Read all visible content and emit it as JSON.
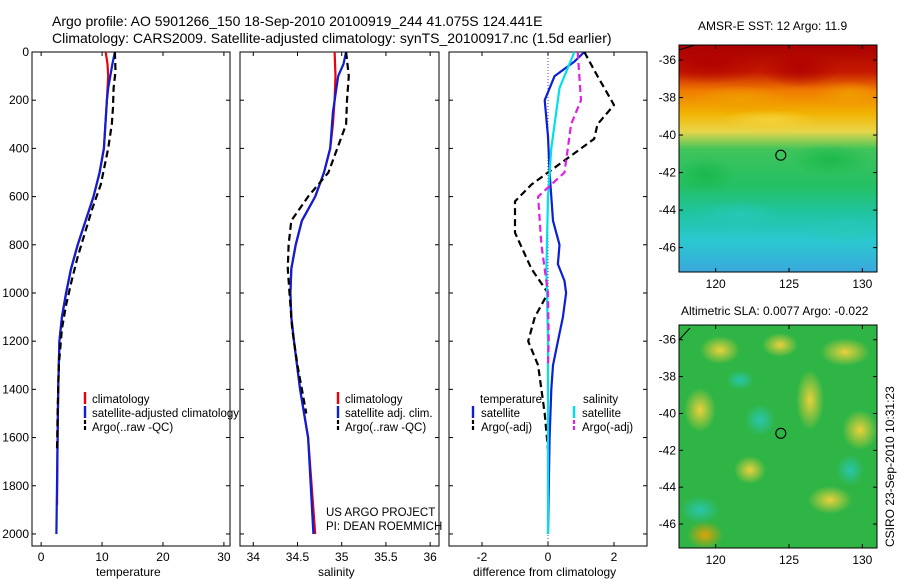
{
  "header": {
    "line1": "Argo profile: AO 5901266_150 18-Sep-2010 20100919_244 41.075S 124.441E",
    "line2": "Climatology: CARS2009. Satellite-adjusted climatology: synTS_20100917.nc (1.5d earlier)"
  },
  "side_stamp": "CSIRO 23-Sep-2010 10:31:23",
  "project_text": [
    "US ARGO PROJECT",
    "PI: DEAN ROEMMICH"
  ],
  "colors": {
    "climatology": "#e8000b",
    "satellite": "#0a1fd6",
    "argo": "#000000",
    "salinity_sat": "#00e0e8",
    "salinity_argo": "#e020e0",
    "zero_line": "#0a1fd6"
  },
  "chart_data": [
    {
      "type": "line",
      "xlabel": "temperature",
      "ylim": [
        2050,
        0
      ],
      "xlim": [
        -1.5,
        31
      ],
      "xticks": [
        0,
        10,
        20,
        30
      ],
      "xtick_labels": [
        "0",
        "10",
        "20",
        "30"
      ],
      "yticks": [
        0,
        200,
        400,
        600,
        800,
        1000,
        1200,
        1400,
        1600,
        1800,
        2000
      ],
      "ytick_labels": [
        "0",
        "200",
        "400",
        "600",
        "800",
        "1000",
        "1200",
        "1400",
        "1600",
        "1800",
        "2000"
      ],
      "legend": {
        "placement": "lower-right",
        "entries": [
          "climatology",
          "satellite-adjusted climatology",
          "Argo(..raw -QC)"
        ]
      },
      "series": [
        {
          "name": "climatology",
          "color": "#e8000b",
          "dash": "",
          "x": [
            10.6,
            10.9,
            11.0,
            10.8,
            10.3,
            9.6,
            8.6,
            7.3,
            6.0,
            4.9,
            4.1,
            3.4,
            3.0,
            2.8,
            2.7,
            2.6
          ],
          "y": [
            0,
            50,
            100,
            200,
            400,
            500,
            600,
            700,
            800,
            900,
            1000,
            1100,
            1200,
            1400,
            1600,
            1880
          ]
        },
        {
          "name": "satellite-adjusted climatology",
          "color": "#0a1fd6",
          "dash": "",
          "x": [
            12.1,
            11.7,
            11.0,
            10.8,
            10.3,
            9.6,
            8.6,
            7.3,
            6.0,
            4.9,
            4.1,
            3.4,
            3.0,
            2.8,
            2.7,
            2.6,
            2.5
          ],
          "y": [
            0,
            50,
            150,
            200,
            400,
            500,
            600,
            700,
            800,
            900,
            1000,
            1100,
            1200,
            1400,
            1600,
            1800,
            2000
          ]
        },
        {
          "name": "Argo(..raw -QC)",
          "color": "#000000",
          "dash": "7 4",
          "x": [
            12.1,
            12.2,
            11.9,
            11.8,
            11.6,
            11.0,
            9.8,
            8.4,
            7.2,
            6.0,
            5.0,
            4.1,
            3.4,
            2.9,
            2.7,
            2.6
          ],
          "y": [
            0,
            80,
            150,
            230,
            300,
            400,
            550,
            650,
            750,
            850,
            950,
            1050,
            1150,
            1300,
            1500,
            1650
          ]
        }
      ]
    },
    {
      "type": "line",
      "xlabel": "salinity",
      "ylim": [
        2050,
        0
      ],
      "xlim": [
        33.85,
        36.1
      ],
      "xticks": [
        34,
        34.5,
        35,
        35.5,
        36
      ],
      "xtick_labels": [
        "34",
        "34.5",
        "35",
        "35.5",
        "36"
      ],
      "legend": {
        "placement": "lower-right",
        "entries": [
          "climatology",
          "satellite adj. clim.",
          "Argo(..raw -QC)"
        ]
      },
      "series": [
        {
          "name": "climatology",
          "color": "#e8000b",
          "dash": "",
          "x": [
            34.92,
            34.93,
            34.92,
            34.9,
            34.87,
            34.8,
            34.7,
            34.55,
            34.48,
            34.43,
            34.42,
            34.43,
            34.46,
            34.53,
            34.62,
            34.7
          ],
          "y": [
            0,
            100,
            200,
            300,
            400,
            500,
            600,
            700,
            800,
            900,
            1000,
            1100,
            1200,
            1400,
            1600,
            2000
          ]
        },
        {
          "name": "satellite adj. clim.",
          "color": "#0a1fd6",
          "dash": "",
          "x": [
            35.05,
            35.02,
            34.96,
            34.9,
            34.87,
            34.8,
            34.7,
            34.55,
            34.48,
            34.43,
            34.42,
            34.43,
            34.46,
            34.53,
            34.62,
            34.68
          ],
          "y": [
            0,
            50,
            100,
            250,
            400,
            500,
            600,
            700,
            800,
            900,
            1000,
            1100,
            1200,
            1400,
            1600,
            2000
          ]
        },
        {
          "name": "Argo(..raw -QC)",
          "color": "#000000",
          "dash": "7 4",
          "x": [
            35.05,
            35.08,
            35.06,
            35.05,
            34.95,
            34.85,
            34.62,
            34.43,
            34.4,
            34.39,
            34.41,
            34.44,
            34.5,
            34.6
          ],
          "y": [
            0,
            100,
            200,
            300,
            400,
            500,
            600,
            700,
            800,
            900,
            1000,
            1150,
            1300,
            1500
          ]
        }
      ]
    },
    {
      "type": "line",
      "xlabel": "difference from climatology",
      "ylim": [
        2050,
        0
      ],
      "xlim": [
        -3,
        3
      ],
      "xticks": [
        -2,
        0,
        2
      ],
      "xtick_labels": [
        "-2",
        "0",
        "2"
      ],
      "legend": {
        "placement": "lower",
        "titles": [
          "temperature",
          "salinity"
        ],
        "entries": [
          "satellite",
          "Argo(-adj)",
          "satellite",
          "Argo(-adj)"
        ]
      },
      "series": [
        {
          "name": "satellite",
          "group": "temperature",
          "color": "#0a1fd6",
          "dash": "",
          "x": [
            1.1,
            0.8,
            0.2,
            -0.1,
            0.0,
            0.05,
            0.1,
            0.15,
            0.35,
            0.3,
            0.5,
            0.55,
            0.45,
            0.3,
            0.15,
            0.1,
            0.05,
            0.0
          ],
          "y": [
            0,
            40,
            100,
            200,
            350,
            500,
            600,
            700,
            800,
            880,
            950,
            1000,
            1100,
            1200,
            1300,
            1400,
            1600,
            2000
          ]
        },
        {
          "name": "Argo(-adj)",
          "group": "temperature",
          "color": "#000000",
          "dash": "7 4",
          "x": [
            1.1,
            1.5,
            2.0,
            1.5,
            1.4,
            0.2,
            -0.5,
            -1.0,
            -1.0,
            -0.5,
            0.0,
            -0.4,
            -0.6,
            -0.3,
            -0.1,
            0.0
          ],
          "y": [
            0,
            100,
            220,
            300,
            360,
            480,
            550,
            620,
            750,
            900,
            1000,
            1100,
            1200,
            1300,
            1500,
            1650
          ]
        },
        {
          "name": "satellite",
          "group": "salinity",
          "color": "#00e0e8",
          "dash": "",
          "x": [
            0.8,
            0.35,
            0.1,
            0.0,
            -0.05,
            0.0,
            0.0
          ],
          "y": [
            0,
            150,
            400,
            600,
            900,
            1200,
            2000
          ]
        },
        {
          "name": "Argo(-adj)",
          "group": "salinity",
          "color": "#e020e0",
          "dash": "7 4",
          "x": [
            0.9,
            1.0,
            0.7,
            0.5,
            -0.3,
            -0.2,
            0.0,
            0.02,
            0.0
          ],
          "y": [
            0,
            200,
            300,
            500,
            600,
            800,
            1000,
            1200,
            1300
          ]
        }
      ]
    },
    {
      "type": "heatmap",
      "title": "AMSR-E SST: 12 Argo: 11.9",
      "xlim": [
        117.5,
        131
      ],
      "ylim": [
        -47.3,
        -35.2
      ],
      "xticks": [
        120,
        125,
        130
      ],
      "xtick_labels": [
        "120",
        "125",
        "130"
      ],
      "yticks": [
        -36,
        -38,
        -40,
        -42,
        -44,
        -46
      ],
      "ytick_labels": [
        "-36",
        "-38",
        "-40",
        "-42",
        "-44",
        "-46"
      ],
      "marker": {
        "lon": 124.441,
        "lat": -41.075
      }
    },
    {
      "type": "heatmap",
      "title": "Altimetric SLA: 0.0077 Argo: -0.022",
      "xlim": [
        117.5,
        131
      ],
      "ylim": [
        -47.3,
        -35.2
      ],
      "xticks": [
        120,
        125,
        130
      ],
      "xtick_labels": [
        "120",
        "125",
        "130"
      ],
      "yticks": [
        -36,
        -38,
        -40,
        -42,
        -44,
        -46
      ],
      "ytick_labels": [
        "-36",
        "-38",
        "-40",
        "-42",
        "-44",
        "-46"
      ],
      "marker": {
        "lon": 124.441,
        "lat": -41.075
      }
    }
  ]
}
